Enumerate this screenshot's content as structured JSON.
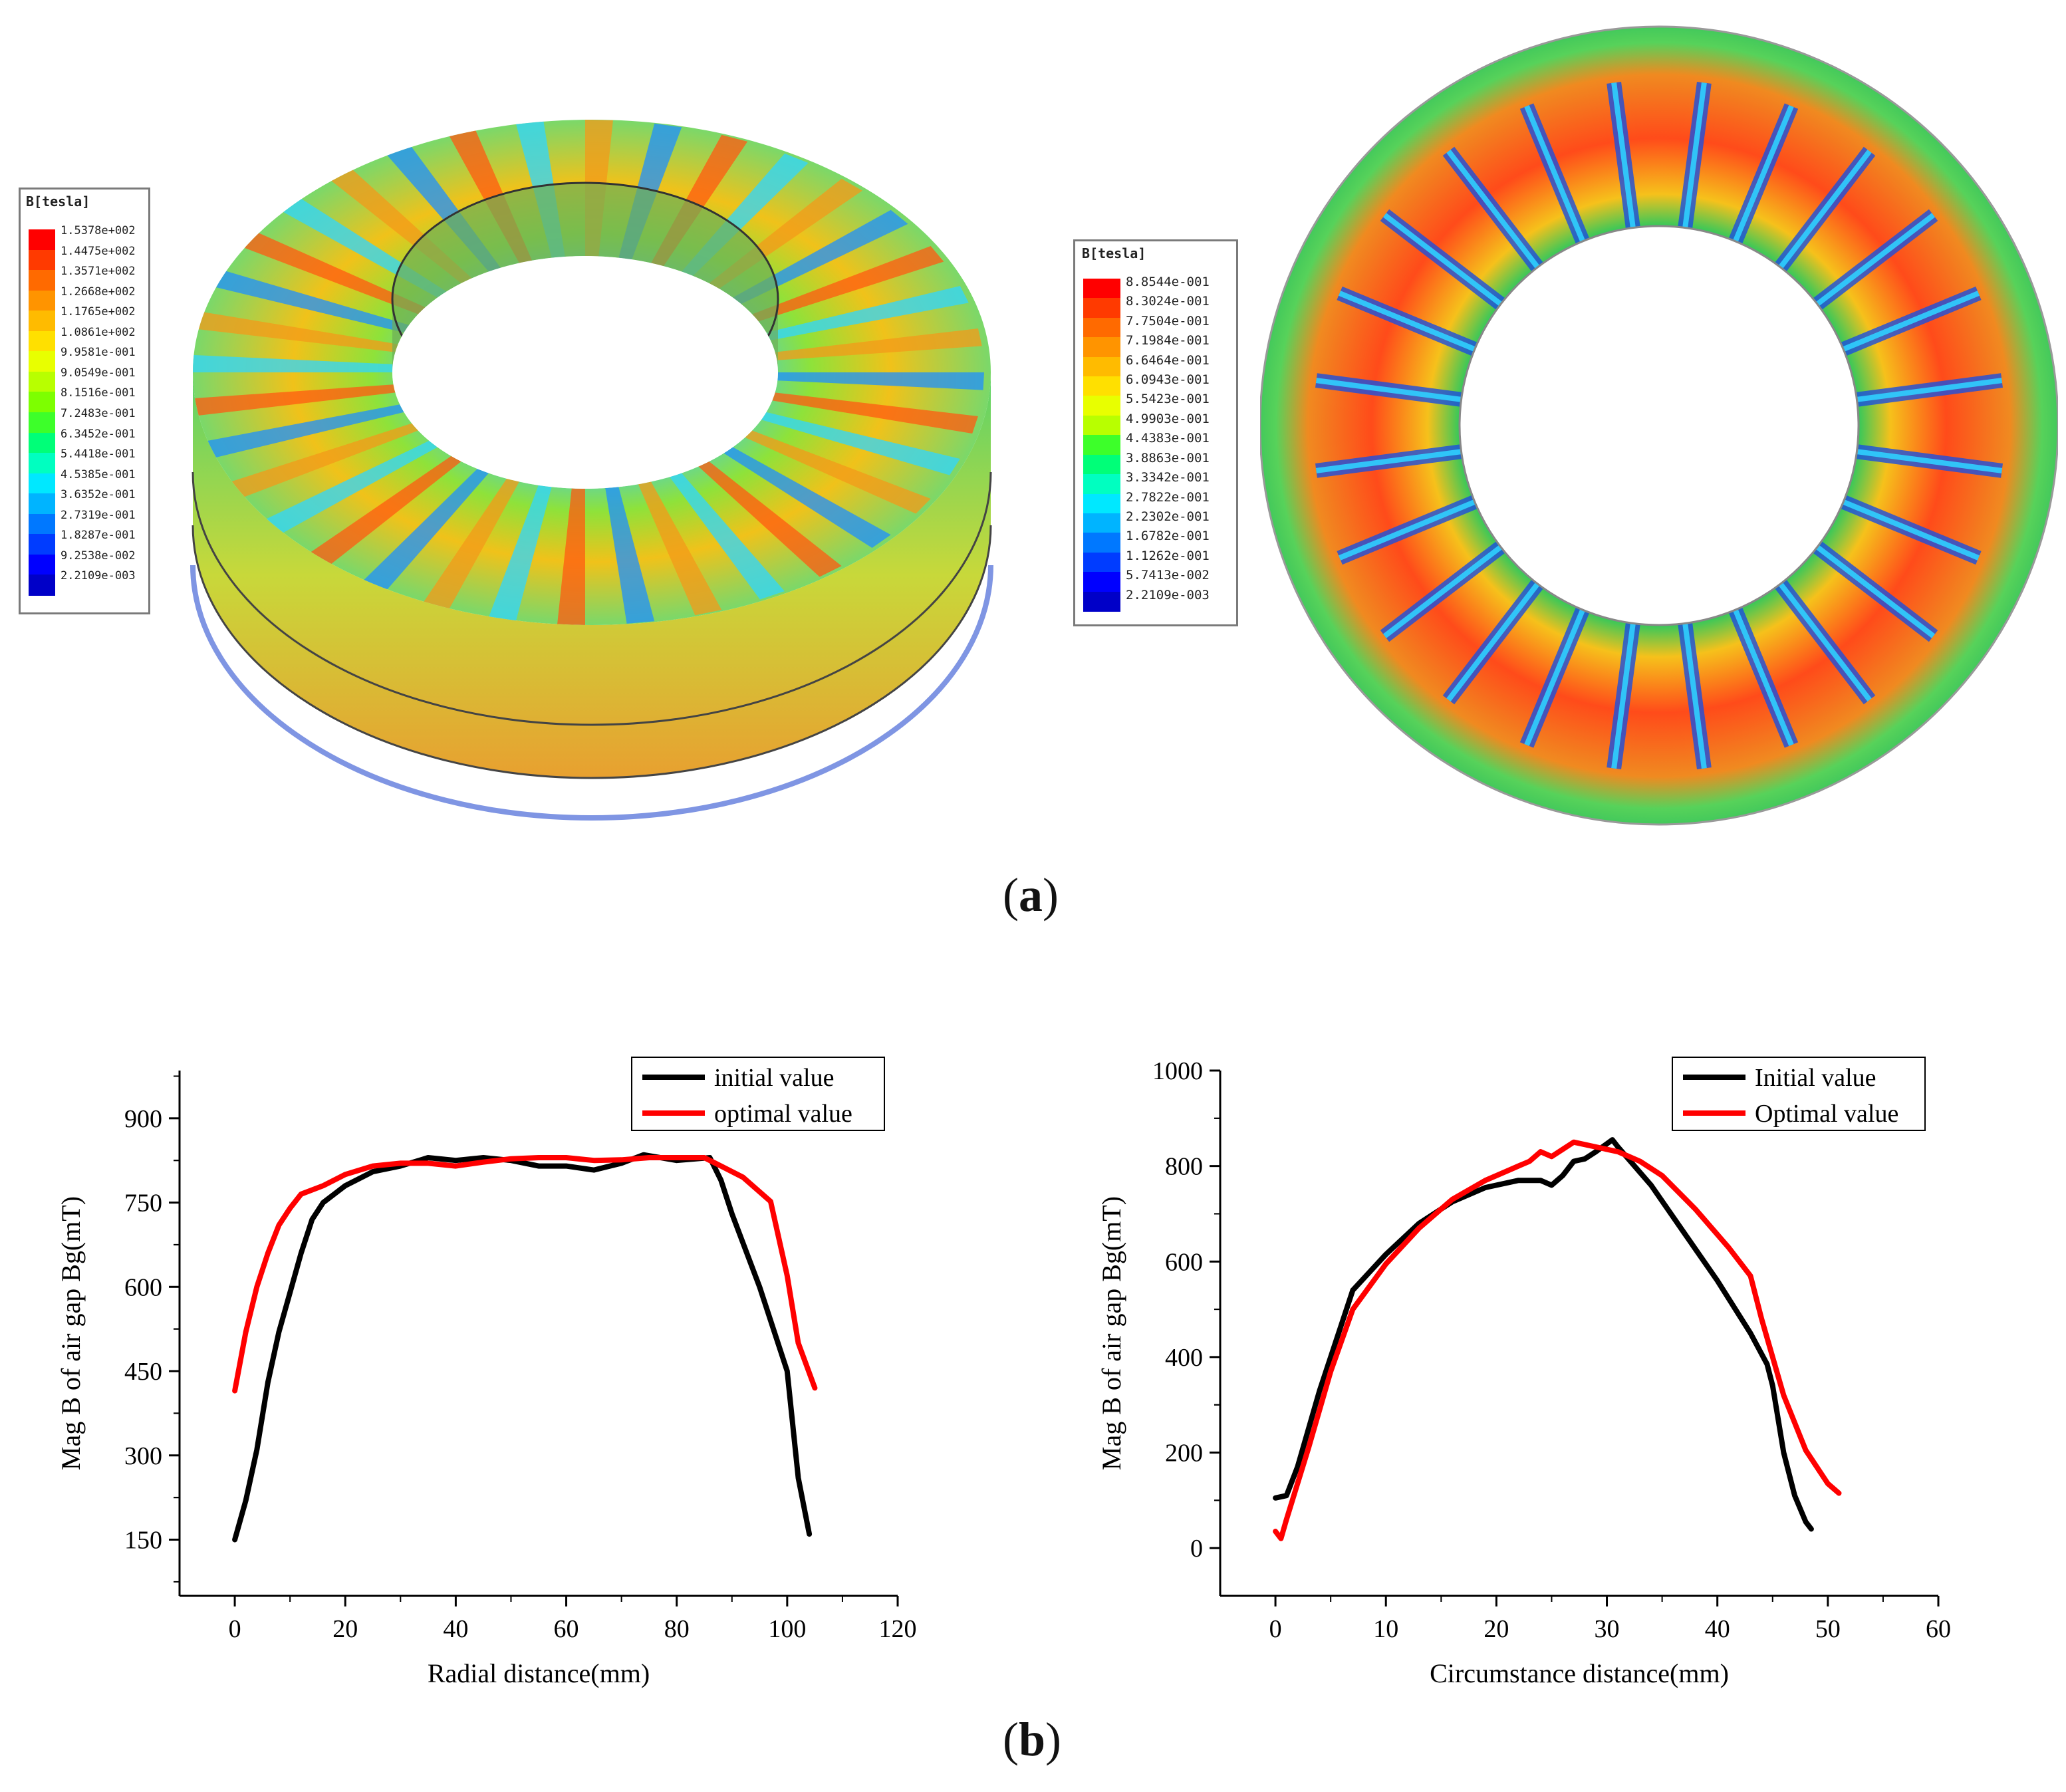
{
  "figure_a": {
    "caption_letter": "a",
    "legend_3d": {
      "title": "B[tesla]",
      "values": [
        "1.5378e+002",
        "1.4475e+002",
        "1.3571e+002",
        "1.2668e+002",
        "1.1765e+002",
        "1.0861e+002",
        "9.9581e-001",
        "9.0549e-001",
        "8.1516e-001",
        "7.2483e-001",
        "6.3452e-001",
        "5.4418e-001",
        "4.5385e-001",
        "3.6352e-001",
        "2.7319e-001",
        "1.8287e-001",
        "9.2538e-002",
        "2.2109e-003"
      ]
    },
    "legend_2d": {
      "title": "B[tesla]",
      "values": [
        "8.8544e-001",
        "8.3024e-001",
        "7.7504e-001",
        "7.1984e-001",
        "6.6464e-001",
        "6.0943e-001",
        "5.5423e-001",
        "4.9903e-001",
        "4.4383e-001",
        "3.8863e-001",
        "3.3342e-001",
        "2.7822e-001",
        "2.2302e-001",
        "1.6782e-001",
        "1.1262e-001",
        "5.7413e-002",
        "2.2109e-003"
      ]
    },
    "colors": [
      "#ff0000",
      "#ff3a00",
      "#ff6a00",
      "#ff9400",
      "#ffbb00",
      "#ffe000",
      "#e8ff00",
      "#b8ff00",
      "#7dff00",
      "#3dff2a",
      "#00ff78",
      "#00ffc0",
      "#00e8ff",
      "#00b4ff",
      "#0078ff",
      "#003cff",
      "#0000ff",
      "#0000c8"
    ]
  },
  "figure_b": {
    "caption_letter": "b",
    "chart_data": [
      {
        "type": "line",
        "title": "",
        "xlabel": "Radial distance(mm)",
        "ylabel": "Mag B of air gap Bg(mT)",
        "xlim": [
          -10,
          120
        ],
        "ylim": [
          50,
          985
        ],
        "xticks": [
          "0",
          "20",
          "40",
          "60",
          "80",
          "100",
          "120"
        ],
        "xtick_values": [
          0,
          20,
          40,
          60,
          80,
          100,
          120
        ],
        "yticks": [
          "150",
          "300",
          "450",
          "600",
          "750",
          "900"
        ],
        "ytick_values": [
          150,
          300,
          450,
          600,
          750,
          900
        ],
        "legend_position": "top-right",
        "series": [
          {
            "name": "initial value",
            "color": "#000000",
            "x": [
              0,
              2,
              4,
              6,
              8,
              10,
              12,
              14,
              16,
              20,
              25,
              30,
              35,
              40,
              45,
              50,
              55,
              60,
              65,
              70,
              74,
              80,
              86,
              88,
              90,
              95,
              100,
              102,
              104
            ],
            "y": [
              150,
              220,
              310,
              430,
              520,
              590,
              660,
              720,
              750,
              780,
              805,
              815,
              830,
              825,
              830,
              825,
              815,
              815,
              808,
              820,
              835,
              825,
              830,
              790,
              730,
              600,
              450,
              260,
              160
            ]
          },
          {
            "name": "optimal value",
            "color": "#ff0000",
            "x": [
              0,
              2,
              4,
              6,
              8,
              10,
              12,
              16,
              20,
              25,
              30,
              35,
              40,
              45,
              50,
              55,
              60,
              65,
              70,
              75,
              80,
              85,
              88,
              92,
              97,
              100,
              102,
              105
            ],
            "y": [
              415,
              520,
              600,
              660,
              710,
              740,
              765,
              780,
              800,
              815,
              820,
              820,
              815,
              822,
              828,
              830,
              830,
              825,
              826,
              830,
              830,
              830,
              815,
              795,
              752,
              620,
              500,
              420
            ]
          }
        ]
      },
      {
        "type": "line",
        "title": "",
        "xlabel": "Circumstance distance(mm)",
        "ylabel": "Mag B of air gap Bg(mT)",
        "xlim": [
          -5,
          60
        ],
        "ylim": [
          -100,
          1000
        ],
        "xticks": [
          "0",
          "10",
          "20",
          "30",
          "40",
          "50",
          "60"
        ],
        "xtick_values": [
          0,
          10,
          20,
          30,
          40,
          50,
          60
        ],
        "yticks": [
          "0",
          "200",
          "400",
          "600",
          "800",
          "1000"
        ],
        "ytick_values": [
          0,
          200,
          400,
          600,
          800,
          1000
        ],
        "legend_position": "top-right",
        "series": [
          {
            "name": "Initial value",
            "color": "#000000",
            "x": [
              0,
              1,
              2,
              4,
              7,
              10,
              13,
              16,
              19,
              22,
              24,
              25,
              25.5,
              26,
              27,
              28,
              29,
              30.5,
              31,
              34,
              37,
              40,
              43,
              44.5,
              45,
              46,
              47,
              48,
              48.5
            ],
            "y": [
              105,
              110,
              170,
              330,
              540,
              615,
              680,
              725,
              755,
              770,
              770,
              760,
              770,
              780,
              810,
              815,
              830,
              855,
              840,
              760,
              660,
              560,
              450,
              385,
              340,
              200,
              110,
              55,
              40
            ]
          },
          {
            "name": "Optimal value",
            "color": "#ff0000",
            "x": [
              0,
              0.5,
              1,
              3,
              5,
              7,
              10,
              13,
              16,
              19,
              21,
              22,
              23,
              24,
              25,
              26,
              27,
              29,
              31,
              33,
              35,
              38,
              41,
              43,
              44,
              46,
              48,
              50,
              51
            ],
            "y": [
              35,
              20,
              60,
              210,
              370,
              500,
              595,
              670,
              730,
              770,
              790,
              800,
              810,
              830,
              820,
              835,
              850,
              840,
              830,
              810,
              780,
              710,
              630,
              570,
              480,
              320,
              205,
              135,
              115
            ]
          }
        ]
      }
    ]
  }
}
